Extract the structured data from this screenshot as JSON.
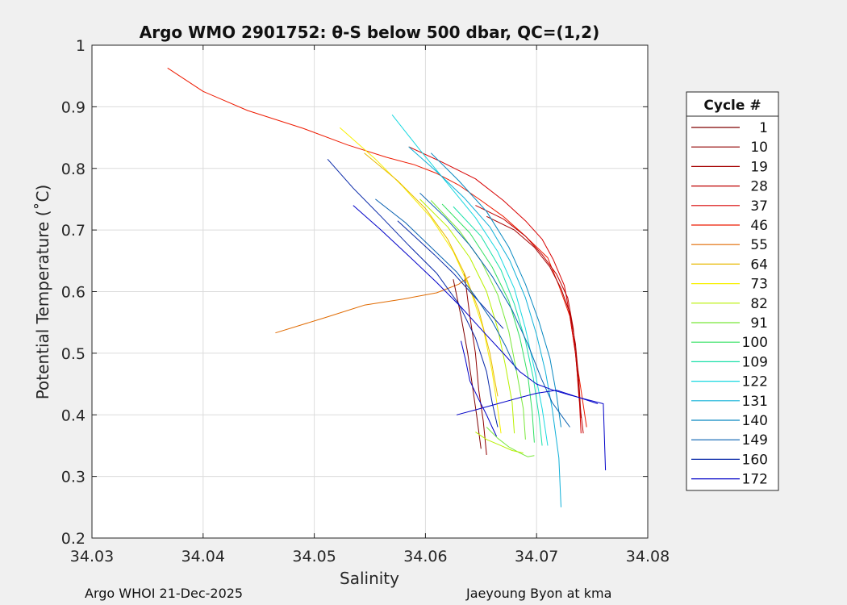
{
  "chart_data": {
    "type": "line",
    "title": "Argo WMO 2901752: θ-S below 500 dbar,  QC=(1,2)",
    "xlabel": "Salinity",
    "ylabel": "Potential Temperature (˚C)",
    "xlim": [
      34.03,
      34.08
    ],
    "ylim": [
      0.2,
      1.0
    ],
    "xticks": [
      "34.03",
      "34.04",
      "34.05",
      "34.06",
      "34.07",
      "34.08"
    ],
    "yticks": [
      "0.2",
      "0.3",
      "0.4",
      "0.5",
      "0.6",
      "0.7",
      "0.8",
      "0.9",
      "1"
    ],
    "grid": true,
    "legend": {
      "title": "Cycle #",
      "placement": "right-outside",
      "entries": [
        {
          "label": "1",
          "color": "#7f0000"
        },
        {
          "label": "10",
          "color": "#900000"
        },
        {
          "label": "19",
          "color": "#a50000"
        },
        {
          "label": "28",
          "color": "#be0000"
        },
        {
          "label": "37",
          "color": "#d70000"
        },
        {
          "label": "46",
          "color": "#ee1a00"
        },
        {
          "label": "55",
          "color": "#e06a00"
        },
        {
          "label": "64",
          "color": "#e8b800"
        },
        {
          "label": "73",
          "color": "#f8f000"
        },
        {
          "label": "82",
          "color": "#b8f000"
        },
        {
          "label": "91",
          "color": "#78e838"
        },
        {
          "label": "100",
          "color": "#30e060"
        },
        {
          "label": "109",
          "color": "#18e0a8"
        },
        {
          "label": "122",
          "color": "#18d8e0"
        },
        {
          "label": "131",
          "color": "#10b0d8"
        },
        {
          "label": "140",
          "color": "#0888c0"
        },
        {
          "label": "149",
          "color": "#0860b0"
        },
        {
          "label": "160",
          "color": "#0828a8"
        },
        {
          "label": "172",
          "color": "#0000c8"
        }
      ]
    },
    "series": [
      {
        "name": "46",
        "color": "#ee1a00",
        "x": [
          34.0368,
          34.04,
          34.044,
          34.049,
          34.053,
          34.0565,
          34.059,
          34.061,
          34.063,
          34.065,
          34.067,
          34.069,
          34.071,
          34.072,
          34.073,
          34.0735,
          34.074,
          34.0745
        ],
        "y": [
          0.963,
          0.925,
          0.894,
          0.865,
          0.838,
          0.818,
          0.806,
          0.792,
          0.773,
          0.748,
          0.722,
          0.69,
          0.655,
          0.61,
          0.56,
          0.5,
          0.44,
          0.38
        ]
      },
      {
        "name": "55",
        "color": "#e06a00",
        "x": [
          34.0465,
          34.051,
          34.0545,
          34.058,
          34.061,
          34.063,
          34.064
        ],
        "y": [
          0.533,
          0.558,
          0.578,
          0.588,
          0.598,
          0.612,
          0.625
        ]
      },
      {
        "name": "37",
        "color": "#d70000",
        "x": [
          34.0585,
          34.0615,
          34.0645,
          34.067,
          34.069,
          34.0705,
          34.0715,
          34.0725,
          34.073,
          34.0735,
          34.0738,
          34.074
        ],
        "y": [
          0.835,
          0.81,
          0.783,
          0.748,
          0.715,
          0.685,
          0.652,
          0.61,
          0.56,
          0.5,
          0.44,
          0.37
        ]
      },
      {
        "name": "28",
        "color": "#be0000",
        "x": [
          34.0645,
          34.067,
          34.069,
          34.0705,
          34.0718,
          34.0728,
          34.0733,
          34.0736,
          34.0738,
          34.0742
        ],
        "y": [
          0.74,
          0.718,
          0.69,
          0.66,
          0.628,
          0.59,
          0.54,
          0.48,
          0.43,
          0.37
        ]
      },
      {
        "name": "19",
        "color": "#a50000",
        "x": [
          34.0655,
          34.068,
          34.0698,
          34.0712,
          34.0722,
          34.073,
          34.0735,
          34.0738,
          34.074
        ],
        "y": [
          0.722,
          0.7,
          0.672,
          0.64,
          0.605,
          0.565,
          0.515,
          0.455,
          0.395
        ]
      },
      {
        "name": "10",
        "color": "#900000",
        "x": [
          34.0635,
          34.064,
          34.0645,
          34.0648,
          34.0652,
          34.0655
        ],
        "y": [
          0.63,
          0.56,
          0.5,
          0.44,
          0.39,
          0.335
        ]
      },
      {
        "name": "1",
        "color": "#7f0000",
        "x": [
          34.0625,
          34.0632,
          34.0638,
          34.0642,
          34.0646,
          34.065
        ],
        "y": [
          0.62,
          0.56,
          0.5,
          0.45,
          0.4,
          0.345
        ]
      },
      {
        "name": "73",
        "color": "#f8f000",
        "x": [
          34.0523,
          34.0555,
          34.058,
          34.0605,
          34.0625,
          34.064,
          34.0652,
          34.066,
          34.0665,
          34.0668
        ],
        "y": [
          0.866,
          0.815,
          0.77,
          0.72,
          0.665,
          0.605,
          0.54,
          0.47,
          0.41,
          0.37
        ]
      },
      {
        "name": "64",
        "color": "#e8b800",
        "x": [
          34.0545,
          34.0575,
          34.06,
          34.062,
          34.0635,
          34.0648,
          34.0658,
          34.0665
        ],
        "y": [
          0.825,
          0.78,
          0.735,
          0.685,
          0.63,
          0.57,
          0.5,
          0.43
        ]
      },
      {
        "name": "82",
        "color": "#b8f000",
        "x": [
          34.0595,
          34.062,
          34.064,
          34.0655,
          34.0665,
          34.0672,
          34.0678,
          34.068
        ],
        "y": [
          0.75,
          0.705,
          0.655,
          0.6,
          0.54,
          0.48,
          0.42,
          0.37
        ]
      },
      {
        "name": "91",
        "color": "#78e838",
        "x": [
          34.0605,
          34.063,
          34.065,
          34.0665,
          34.0675,
          34.0682,
          34.0688,
          34.069
        ],
        "y": [
          0.748,
          0.7,
          0.65,
          0.595,
          0.535,
          0.47,
          0.41,
          0.36
        ]
      },
      {
        "name": "100",
        "color": "#30e060",
        "x": [
          34.0615,
          34.064,
          34.066,
          34.0675,
          34.0685,
          34.0692,
          34.0696,
          34.0698
        ],
        "y": [
          0.742,
          0.695,
          0.64,
          0.585,
          0.525,
          0.465,
          0.405,
          0.355
        ]
      },
      {
        "name": "109",
        "color": "#18e0a8",
        "x": [
          34.0625,
          34.065,
          34.0668,
          34.068,
          34.069,
          34.0697,
          34.0702,
          34.0705
        ],
        "y": [
          0.738,
          0.69,
          0.635,
          0.58,
          0.52,
          0.46,
          0.4,
          0.35
        ]
      },
      {
        "name": "122",
        "color": "#18d8e0",
        "x": [
          34.057,
          34.0595,
          34.062,
          34.0645,
          34.0665,
          34.068,
          34.069,
          34.0698,
          34.0705,
          34.071
        ],
        "y": [
          0.887,
          0.83,
          0.775,
          0.72,
          0.665,
          0.605,
          0.54,
          0.475,
          0.41,
          0.35
        ]
      },
      {
        "name": "131",
        "color": "#10b0d8",
        "x": [
          34.0585,
          34.061,
          34.0635,
          34.0658,
          34.0676,
          34.069,
          34.07,
          34.0708,
          34.0714,
          34.072,
          34.0722
        ],
        "y": [
          0.835,
          0.795,
          0.752,
          0.705,
          0.65,
          0.59,
          0.53,
          0.47,
          0.41,
          0.33,
          0.25
        ]
      },
      {
        "name": "140",
        "color": "#0888c0",
        "x": [
          34.0605,
          34.063,
          34.0655,
          34.0675,
          34.069,
          34.0702,
          34.0712,
          34.0718,
          34.0722
        ],
        "y": [
          0.825,
          0.78,
          0.73,
          0.672,
          0.612,
          0.552,
          0.492,
          0.432,
          0.38
        ]
      },
      {
        "name": "149",
        "color": "#0860b0",
        "x": [
          34.0595,
          34.0618,
          34.064,
          34.066,
          34.0678,
          34.0692,
          34.0704,
          34.0714,
          34.0722,
          34.073
        ],
        "y": [
          0.76,
          0.72,
          0.675,
          0.625,
          0.57,
          0.515,
          0.46,
          0.42,
          0.4,
          0.38
        ]
      },
      {
        "name": "160",
        "color": "#0828a8",
        "x": [
          34.0512,
          34.0535,
          34.056,
          34.0585,
          34.061,
          34.063,
          34.0645,
          34.0655,
          34.066,
          34.0665
        ],
        "y": [
          0.815,
          0.768,
          0.722,
          0.675,
          0.63,
          0.58,
          0.525,
          0.47,
          0.42,
          0.38
        ]
      },
      {
        "name": "172",
        "color": "#0000c8",
        "x": [
          34.0535,
          34.056,
          34.0585,
          34.061,
          34.0632,
          34.0652,
          34.067,
          34.0685,
          34.07,
          34.0715,
          34.073,
          34.0745,
          34.076,
          34.0762
        ],
        "y": [
          0.74,
          0.7,
          0.658,
          0.615,
          0.575,
          0.535,
          0.5,
          0.47,
          0.45,
          0.44,
          0.432,
          0.425,
          0.418,
          0.31
        ]
      },
      {
        "name": "160",
        "color": "#0828a8",
        "x": [
          34.0575,
          34.059,
          34.0608,
          34.0625,
          34.064,
          34.0655,
          34.067
        ],
        "y": [
          0.715,
          0.69,
          0.66,
          0.63,
          0.6,
          0.57,
          0.54
        ]
      },
      {
        "name": "149",
        "color": "#0860b0",
        "x": [
          34.0555,
          34.0582,
          34.0605,
          34.0628,
          34.0645,
          34.066,
          34.0672,
          34.0682
        ],
        "y": [
          0.75,
          0.712,
          0.672,
          0.632,
          0.592,
          0.552,
          0.512,
          0.472
        ]
      },
      {
        "name": "172",
        "color": "#0000c8",
        "x": [
          34.0632,
          34.0636,
          34.064,
          34.0648,
          34.0655,
          34.066,
          34.0664
        ],
        "y": [
          0.52,
          0.49,
          0.455,
          0.425,
          0.4,
          0.38,
          0.365
        ]
      },
      {
        "name": "172",
        "color": "#0000c8",
        "x": [
          34.0628,
          34.0645,
          34.0665,
          34.0685,
          34.07,
          34.0718,
          34.0735,
          34.0755
        ],
        "y": [
          0.4,
          0.408,
          0.418,
          0.428,
          0.435,
          0.44,
          0.43,
          0.418
        ]
      },
      {
        "name": "91",
        "color": "#78e838",
        "x": [
          34.0655,
          34.0665,
          34.0675,
          34.0685,
          34.0692,
          34.0698
        ],
        "y": [
          0.38,
          0.362,
          0.348,
          0.338,
          0.332,
          0.334
        ]
      },
      {
        "name": "82",
        "color": "#b8f000",
        "x": [
          34.0645,
          34.0655,
          34.0668,
          34.0678,
          34.0688
        ],
        "y": [
          0.372,
          0.36,
          0.35,
          0.342,
          0.338
        ]
      }
    ]
  },
  "footer": {
    "left": "Argo WHOI 21-Dec-2025",
    "right": "Jaeyoung Byon at kma"
  }
}
